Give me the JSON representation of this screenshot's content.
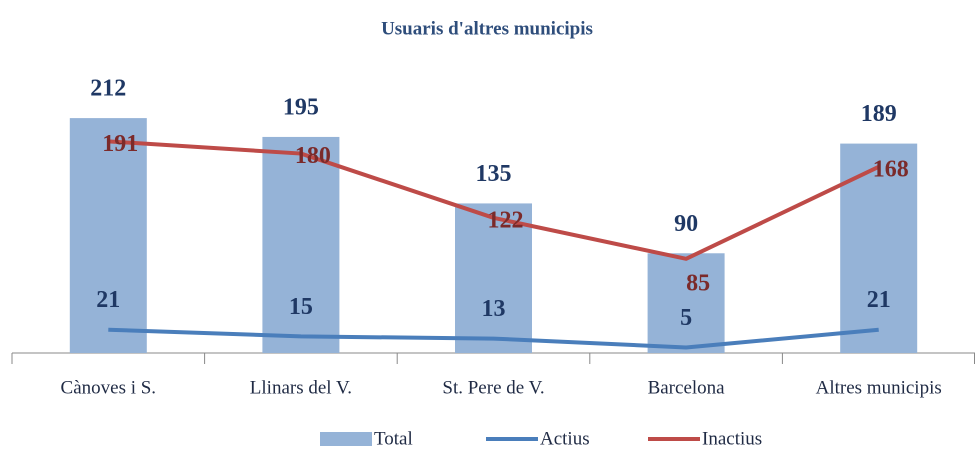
{
  "chart_data": {
    "type": "bar_line",
    "title": "Usuaris d'altres municipis",
    "categories": [
      "Cànoves i S.",
      "Llinars del V.",
      "St. Pere de V.",
      "Barcelona",
      "Altres municipis"
    ],
    "series": [
      {
        "name": "Total",
        "type": "bar",
        "color": "#95b3d7",
        "label_color": "#1f3864",
        "values": [
          212,
          195,
          135,
          90,
          189
        ]
      },
      {
        "name": "Actius",
        "type": "line",
        "color": "#4a7ebb",
        "label_color": "#1f3864",
        "values": [
          21,
          15,
          13,
          5,
          21
        ]
      },
      {
        "name": "Inactius",
        "type": "line",
        "color": "#be4b48",
        "label_color": "#7b2a2a",
        "values": [
          191,
          180,
          122,
          85,
          168
        ]
      }
    ],
    "ylim": [
      0,
      250
    ]
  }
}
